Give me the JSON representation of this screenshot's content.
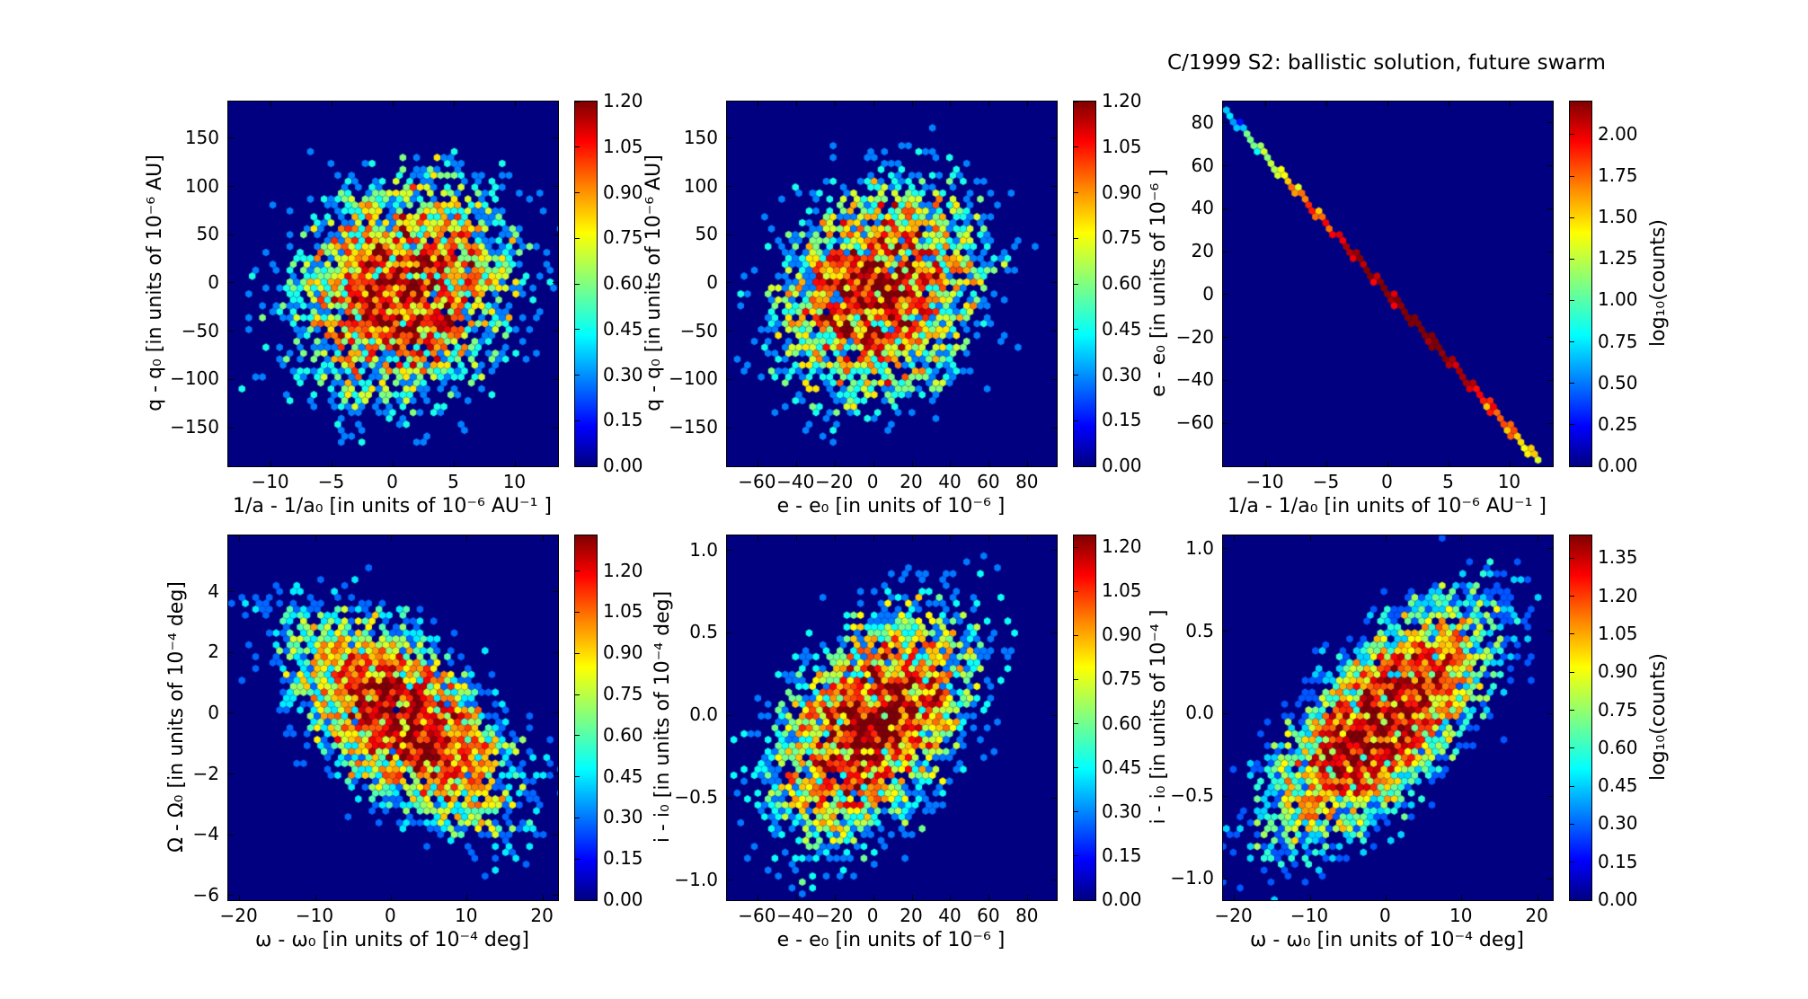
{
  "figure": {
    "background": "#ffffff",
    "plot_background": "#000080",
    "colormap": "jet",
    "spine_color": "#000000"
  },
  "chart_data": [
    {
      "name": "top-left",
      "type": "hexbin",
      "xlabel": "1/a - 1/a₀ [in units of 10⁻⁶ AU⁻¹ ]",
      "ylabel": "q - q₀ [in units of 10⁻⁶ AU]",
      "xlim": [
        -13.5,
        13.5
      ],
      "ylim": [
        -190,
        188
      ],
      "xticks": [
        -10,
        -5,
        0,
        5,
        10
      ],
      "xtick_labels": [
        "−10",
        "−5",
        "0",
        "5",
        "10"
      ],
      "yticks": [
        150,
        100,
        50,
        0,
        -50,
        -100,
        -150
      ],
      "ytick_labels": [
        "150",
        "100",
        "50",
        "0",
        "−50",
        "−100",
        "−150"
      ],
      "colorbar": {
        "scale_max": 1.2,
        "tick_values": [
          1.2,
          1.05,
          0.9,
          0.75,
          0.6,
          0.45,
          0.3,
          0.15,
          0.0
        ],
        "tick_labels": [
          "1.20",
          "1.05",
          "0.90",
          "0.75",
          "0.60",
          "0.45",
          "0.30",
          "0.15",
          "0.00"
        ],
        "label": ""
      },
      "distribution": {
        "kind": "gaussian_blob",
        "center": [
          0.8,
          -8
        ],
        "sigma": [
          4.6,
          58
        ],
        "rho": 0.15,
        "peak_counts": 13
      }
    },
    {
      "name": "top-middle",
      "type": "hexbin",
      "xlabel": "e - e₀ [in units of 10⁻⁶ ]",
      "ylabel": "q - q₀ [in units of 10⁻⁶ AU]",
      "xlim": [
        -76,
        95
      ],
      "ylim": [
        -190,
        188
      ],
      "xticks": [
        -60,
        -40,
        -20,
        0,
        20,
        40,
        60,
        80
      ],
      "xtick_labels": [
        "−60",
        "−40",
        "−20",
        "0",
        "20",
        "40",
        "60",
        "80"
      ],
      "yticks": [
        150,
        100,
        50,
        0,
        -50,
        -100,
        -150
      ],
      "ytick_labels": [
        "150",
        "100",
        "50",
        "0",
        "−50",
        "−100",
        "−150"
      ],
      "colorbar": {
        "scale_max": 1.2,
        "tick_values": [
          1.2,
          1.05,
          0.9,
          0.75,
          0.6,
          0.45,
          0.3,
          0.15,
          0.0
        ],
        "tick_labels": [
          "1.20",
          "1.05",
          "0.90",
          "0.75",
          "0.60",
          "0.45",
          "0.30",
          "0.15",
          "0.00"
        ],
        "label": ""
      },
      "distribution": {
        "kind": "gaussian_blob",
        "center": [
          3,
          -8
        ],
        "sigma": [
          27,
          58
        ],
        "rho": 0.18,
        "peak_counts": 13
      }
    },
    {
      "name": "top-right",
      "type": "hexbin",
      "title": "C/1999 S2:  ballistic solution, future swarm",
      "xlabel": "1/a - 1/a₀ [in units of 10⁻⁶ AU⁻¹ ]",
      "ylabel": "e - e₀ [in units of 10⁻⁶ ]",
      "xlim": [
        -13.5,
        13.5
      ],
      "ylim": [
        -80,
        90
      ],
      "xticks": [
        -10,
        -5,
        0,
        5,
        10
      ],
      "xtick_labels": [
        "−10",
        "−5",
        "0",
        "5",
        "10"
      ],
      "yticks": [
        80,
        60,
        40,
        20,
        0,
        -20,
        -40,
        -60
      ],
      "ytick_labels": [
        "80",
        "60",
        "40",
        "20",
        "0",
        "−20",
        "−40",
        "−60"
      ],
      "colorbar": {
        "scale_max": 2.2,
        "tick_values": [
          2.0,
          1.75,
          1.5,
          1.25,
          1.0,
          0.75,
          0.5,
          0.25,
          0.0
        ],
        "tick_labels": [
          "2.00",
          "1.75",
          "1.50",
          "1.25",
          "1.00",
          "0.75",
          "0.50",
          "0.25",
          "0.00"
        ],
        "label": "log₁₀(counts)"
      },
      "distribution": {
        "kind": "line",
        "slope": -6.35,
        "intercept": 1,
        "x_range": [
          -13.2,
          12.4
        ],
        "peak_counts": 140,
        "peak_x": 1.5,
        "sigma_x": 5.2
      }
    },
    {
      "name": "bottom-left",
      "type": "hexbin",
      "xlabel": "ω - ω₀ [in units of 10⁻⁴ deg]",
      "ylabel": "Ω - Ω₀ [in units of 10⁻⁴ deg]",
      "xlim": [
        -21.5,
        22
      ],
      "ylim": [
        -6.15,
        5.85
      ],
      "xticks": [
        -20,
        -10,
        0,
        10,
        20
      ],
      "xtick_labels": [
        "−20",
        "−10",
        "0",
        "10",
        "20"
      ],
      "yticks": [
        4,
        2,
        0,
        -2,
        -4,
        -6
      ],
      "ytick_labels": [
        "4",
        "2",
        "0",
        "−2",
        "−4",
        "−6"
      ],
      "colorbar": {
        "scale_max": 1.33,
        "tick_values": [
          1.2,
          1.05,
          0.9,
          0.75,
          0.6,
          0.45,
          0.3,
          0.15,
          0.0
        ],
        "tick_labels": [
          "1.20",
          "1.05",
          "0.90",
          "0.75",
          "0.60",
          "0.45",
          "0.30",
          "0.15",
          "0.00"
        ],
        "label": ""
      },
      "distribution": {
        "kind": "gaussian_blob",
        "center": [
          1.5,
          -0.2
        ],
        "sigma": [
          7.5,
          1.75
        ],
        "rho": -0.6,
        "peak_counts": 19
      }
    },
    {
      "name": "bottom-middle",
      "type": "hexbin",
      "xlabel": "e - e₀ [in units of 10⁻⁶ ]",
      "ylabel": "i - i₀ [in units of 10⁻⁴ deg]",
      "xlim": [
        -76,
        95
      ],
      "ylim": [
        -1.12,
        1.09
      ],
      "xticks": [
        -60,
        -40,
        -20,
        0,
        20,
        40,
        60,
        80
      ],
      "xtick_labels": [
        "−60",
        "−40",
        "−20",
        "0",
        "20",
        "40",
        "60",
        "80"
      ],
      "yticks": [
        1.0,
        0.5,
        0.0,
        -0.5,
        -1.0
      ],
      "ytick_labels": [
        "1.0",
        "0.5",
        "0.0",
        "−0.5",
        "−1.0"
      ],
      "colorbar": {
        "scale_max": 1.24,
        "tick_values": [
          1.2,
          1.05,
          0.9,
          0.75,
          0.6,
          0.45,
          0.3,
          0.15,
          0.0
        ],
        "tick_labels": [
          "1.20",
          "1.05",
          "0.90",
          "0.75",
          "0.60",
          "0.45",
          "0.30",
          "0.15",
          "0.00"
        ],
        "label": ""
      },
      "distribution": {
        "kind": "gaussian_blob",
        "center": [
          0,
          -0.05
        ],
        "sigma": [
          27,
          0.37
        ],
        "rho": 0.45,
        "peak_counts": 15
      }
    },
    {
      "name": "bottom-right",
      "type": "hexbin",
      "xlabel": "ω - ω₀ [in units of 10⁻⁴ deg]",
      "ylabel": "i - i₀ [in units of 10⁻⁴ ]",
      "xlim": [
        -21.5,
        22
      ],
      "ylim": [
        -1.13,
        1.08
      ],
      "xticks": [
        -20,
        -10,
        0,
        10,
        20
      ],
      "xtick_labels": [
        "−20",
        "−10",
        "0",
        "10",
        "20"
      ],
      "yticks": [
        1.0,
        0.5,
        0.0,
        -0.5,
        -1.0
      ],
      "ytick_labels": [
        "1.0",
        "0.5",
        "0.0",
        "−0.5",
        "−1.0"
      ],
      "colorbar": {
        "scale_max": 1.44,
        "tick_values": [
          1.35,
          1.2,
          1.05,
          0.9,
          0.75,
          0.6,
          0.45,
          0.3,
          0.15,
          0.0
        ],
        "tick_labels": [
          "1.35",
          "1.20",
          "1.05",
          "0.90",
          "0.75",
          "0.60",
          "0.45",
          "0.30",
          "0.15",
          "0.00"
        ],
        "label": "log₁₀(counts)"
      },
      "distribution": {
        "kind": "gaussian_blob",
        "center": [
          -0.5,
          -0.05
        ],
        "sigma": [
          7.2,
          0.36
        ],
        "rho": 0.68,
        "peak_counts": 24
      }
    }
  ]
}
